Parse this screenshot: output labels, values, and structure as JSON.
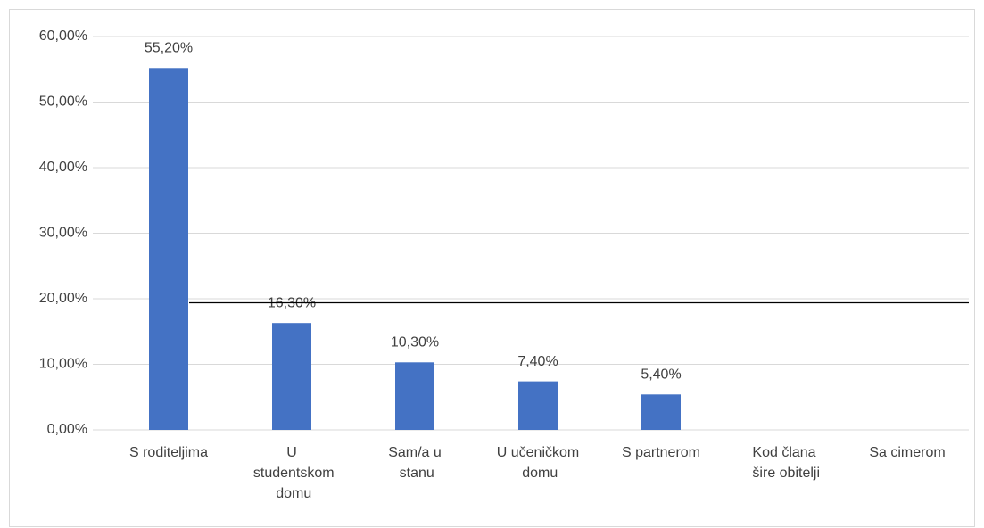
{
  "chart_data": {
    "type": "bar",
    "categories": [
      "S roditeljima",
      "U studentskom domu",
      "Sam/a u stanu",
      "U učeničkom domu",
      "S partnerom",
      "Kod člana šire obitelji",
      "Sa cimerom"
    ],
    "values": [
      55.2,
      16.3,
      10.3,
      7.4,
      5.4,
      null,
      null
    ],
    "value_labels": [
      "55,20%",
      "16,30%",
      "10,30%",
      "7,40%",
      "5,40%",
      null,
      null
    ],
    "color": "#4472c4",
    "ylim": [
      0,
      60
    ],
    "yticks": [
      {
        "value": 0,
        "label": "0,00%"
      },
      {
        "value": 10,
        "label": "10,00%"
      },
      {
        "value": 20,
        "label": "20,00%"
      },
      {
        "value": 30,
        "label": "30,00%"
      },
      {
        "value": 40,
        "label": "40,00%"
      },
      {
        "value": 50,
        "label": "50,00%"
      },
      {
        "value": 60,
        "label": "60,00%"
      }
    ],
    "grid": true
  }
}
